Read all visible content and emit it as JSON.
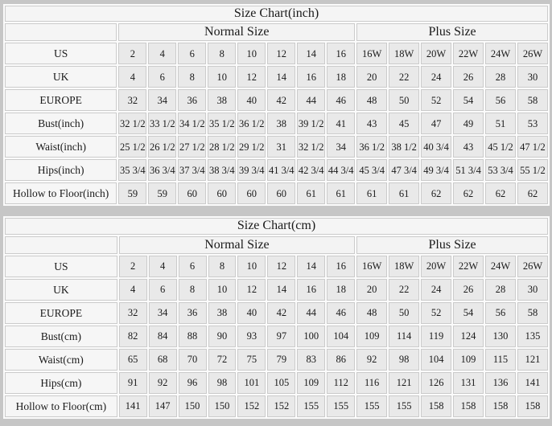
{
  "page": {
    "background_color": "#c6c6c6",
    "panel_color": "#fbfbfb",
    "header_cell_color": "#f5f5f5",
    "data_cell_color": "#e9e9e9",
    "border_color": "#c8c8c8",
    "text_color": "#1a1a1a"
  },
  "chart_data": [
    {
      "type": "table",
      "title": "Size Chart(inch)",
      "column_groups": [
        {
          "label": "Normal Size",
          "span": 8
        },
        {
          "label": "Plus Size",
          "span": 6
        }
      ],
      "rows": [
        {
          "label": "US",
          "values": [
            "2",
            "4",
            "6",
            "8",
            "10",
            "12",
            "14",
            "16",
            "16W",
            "18W",
            "20W",
            "22W",
            "24W",
            "26W"
          ]
        },
        {
          "label": "UK",
          "values": [
            "4",
            "6",
            "8",
            "10",
            "12",
            "14",
            "16",
            "18",
            "20",
            "22",
            "24",
            "26",
            "28",
            "30"
          ]
        },
        {
          "label": "EUROPE",
          "values": [
            "32",
            "34",
            "36",
            "38",
            "40",
            "42",
            "44",
            "46",
            "48",
            "50",
            "52",
            "54",
            "56",
            "58"
          ]
        },
        {
          "label": "Bust(inch)",
          "values": [
            "32 1/2",
            "33 1/2",
            "34 1/2",
            "35 1/2",
            "36 1/2",
            "38",
            "39 1/2",
            "41",
            "43",
            "45",
            "47",
            "49",
            "51",
            "53"
          ]
        },
        {
          "label": "Waist(inch)",
          "values": [
            "25 1/2",
            "26 1/2",
            "27 1/2",
            "28 1/2",
            "29 1/2",
            "31",
            "32 1/2",
            "34",
            "36 1/2",
            "38 1/2",
            "40 3/4",
            "43",
            "45 1/2",
            "47 1/2"
          ]
        },
        {
          "label": "Hips(inch)",
          "values": [
            "35 3/4",
            "36 3/4",
            "37 3/4",
            "38 3/4",
            "39 3/4",
            "41 3/4",
            "42 3/4",
            "44 3/4",
            "45 3/4",
            "47 3/4",
            "49 3/4",
            "51 3/4",
            "53 3/4",
            "55 1/2"
          ]
        },
        {
          "label": "Hollow to Floor(inch)",
          "values": [
            "59",
            "59",
            "60",
            "60",
            "60",
            "60",
            "61",
            "61",
            "61",
            "61",
            "62",
            "62",
            "62",
            "62"
          ]
        }
      ]
    },
    {
      "type": "table",
      "title": "Size Chart(cm)",
      "column_groups": [
        {
          "label": "Normal Size",
          "span": 8
        },
        {
          "label": "Plus Size",
          "span": 6
        }
      ],
      "rows": [
        {
          "label": "US",
          "values": [
            "2",
            "4",
            "6",
            "8",
            "10",
            "12",
            "14",
            "16",
            "16W",
            "18W",
            "20W",
            "22W",
            "24W",
            "26W"
          ]
        },
        {
          "label": "UK",
          "values": [
            "4",
            "6",
            "8",
            "10",
            "12",
            "14",
            "16",
            "18",
            "20",
            "22",
            "24",
            "26",
            "28",
            "30"
          ]
        },
        {
          "label": "EUROPE",
          "values": [
            "32",
            "34",
            "36",
            "38",
            "40",
            "42",
            "44",
            "46",
            "48",
            "50",
            "52",
            "54",
            "56",
            "58"
          ]
        },
        {
          "label": "Bust(cm)",
          "values": [
            "82",
            "84",
            "88",
            "90",
            "93",
            "97",
            "100",
            "104",
            "109",
            "114",
            "119",
            "124",
            "130",
            "135"
          ]
        },
        {
          "label": "Waist(cm)",
          "values": [
            "65",
            "68",
            "70",
            "72",
            "75",
            "79",
            "83",
            "86",
            "92",
            "98",
            "104",
            "109",
            "115",
            "121"
          ]
        },
        {
          "label": "Hips(cm)",
          "values": [
            "91",
            "92",
            "96",
            "98",
            "101",
            "105",
            "109",
            "112",
            "116",
            "121",
            "126",
            "131",
            "136",
            "141"
          ]
        },
        {
          "label": "Hollow to Floor(cm)",
          "values": [
            "141",
            "147",
            "150",
            "150",
            "152",
            "152",
            "155",
            "155",
            "155",
            "155",
            "158",
            "158",
            "158",
            "158"
          ]
        }
      ]
    }
  ]
}
